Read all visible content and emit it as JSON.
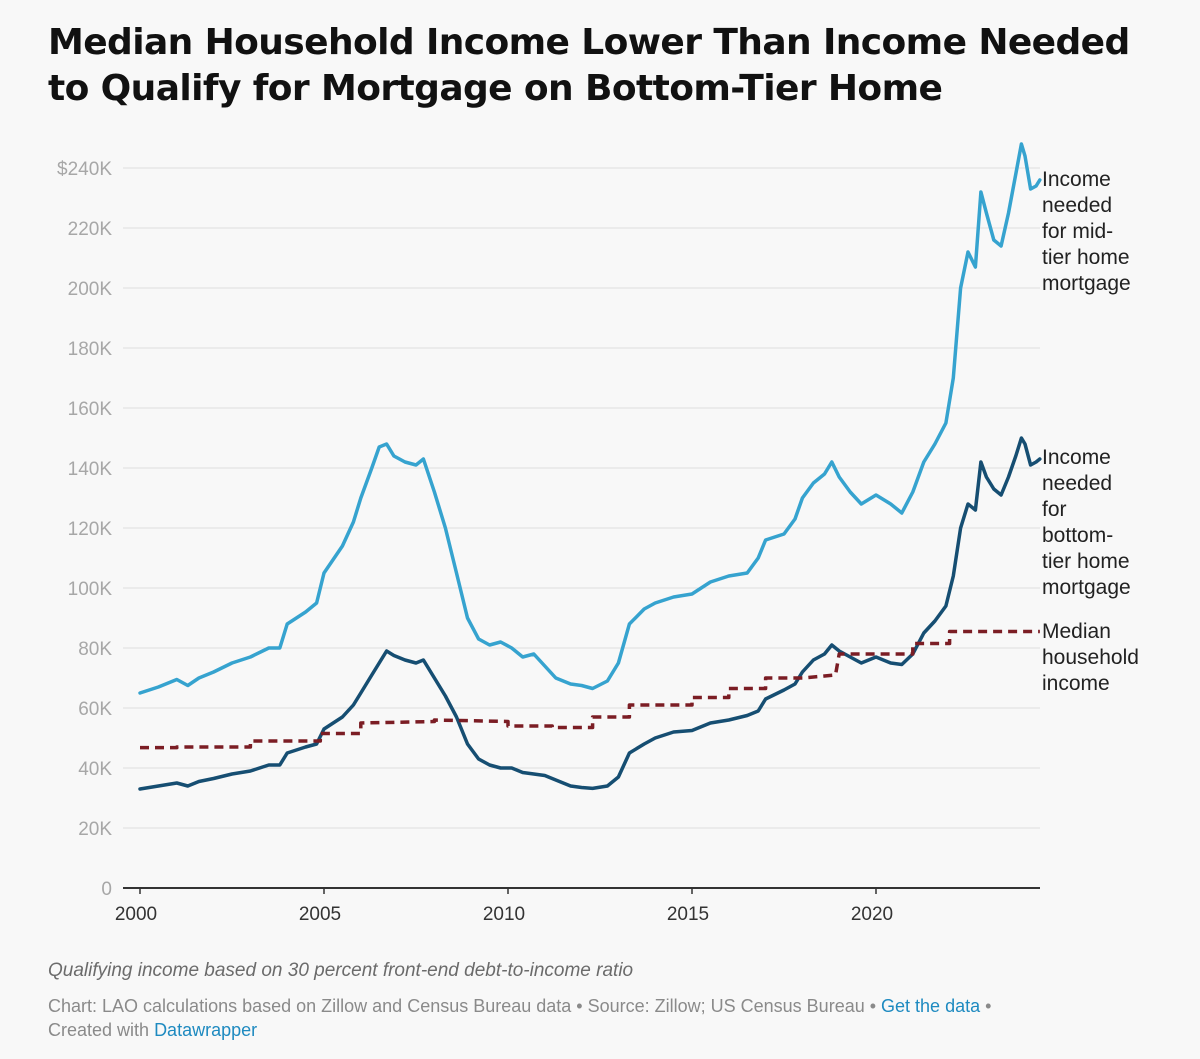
{
  "chart_data": {
    "type": "line",
    "title": "Median Household Income Lower Than Income Needed to Qualify for Mortgage on Bottom-Tier Home",
    "xlabel": "",
    "ylabel": "",
    "xlim": [
      2000,
      2024.5
    ],
    "ylim": [
      0,
      250000
    ],
    "x_ticks": [
      {
        "value": 2000,
        "label": "2000"
      },
      {
        "value": 2005,
        "label": "2005"
      },
      {
        "value": 2010,
        "label": "2010"
      },
      {
        "value": 2015,
        "label": "2015"
      },
      {
        "value": 2020,
        "label": "2020"
      }
    ],
    "y_ticks": [
      {
        "value": 0,
        "label": "0"
      },
      {
        "value": 20000,
        "label": "20K"
      },
      {
        "value": 40000,
        "label": "40K"
      },
      {
        "value": 60000,
        "label": "60K"
      },
      {
        "value": 80000,
        "label": "80K"
      },
      {
        "value": 100000,
        "label": "100K"
      },
      {
        "value": 120000,
        "label": "120K"
      },
      {
        "value": 140000,
        "label": "140K"
      },
      {
        "value": 160000,
        "label": "160K"
      },
      {
        "value": 180000,
        "label": "180K"
      },
      {
        "value": 200000,
        "label": "200K"
      },
      {
        "value": 220000,
        "label": "220K"
      },
      {
        "value": 240000,
        "label": "$240K"
      }
    ],
    "grid": true,
    "series": [
      {
        "name": "Income needed for mid-tier home mortgage",
        "label_lines": [
          "Income",
          "needed",
          "for mid-",
          "tier home",
          "mortgage"
        ],
        "color": "#36a3cf",
        "style": "solid",
        "points": [
          [
            2000,
            65000
          ],
          [
            2000.5,
            67000
          ],
          [
            2001,
            69500
          ],
          [
            2001.3,
            67500
          ],
          [
            2001.6,
            70000
          ],
          [
            2002,
            72000
          ],
          [
            2002.5,
            75000
          ],
          [
            2003,
            77000
          ],
          [
            2003.5,
            80000
          ],
          [
            2003.8,
            80000
          ],
          [
            2004,
            88000
          ],
          [
            2004.5,
            92000
          ],
          [
            2004.8,
            95000
          ],
          [
            2005,
            105000
          ],
          [
            2005.5,
            114000
          ],
          [
            2005.8,
            122000
          ],
          [
            2006,
            130000
          ],
          [
            2006.3,
            140000
          ],
          [
            2006.5,
            147000
          ],
          [
            2006.7,
            148000
          ],
          [
            2006.9,
            144000
          ],
          [
            2007.2,
            142000
          ],
          [
            2007.5,
            141000
          ],
          [
            2007.7,
            143000
          ],
          [
            2008,
            132000
          ],
          [
            2008.3,
            120000
          ],
          [
            2008.6,
            105000
          ],
          [
            2008.9,
            90000
          ],
          [
            2009.2,
            83000
          ],
          [
            2009.5,
            81000
          ],
          [
            2009.8,
            82000
          ],
          [
            2010.1,
            80000
          ],
          [
            2010.4,
            77000
          ],
          [
            2010.7,
            78000
          ],
          [
            2011,
            74000
          ],
          [
            2011.3,
            70000
          ],
          [
            2011.7,
            68000
          ],
          [
            2012,
            67500
          ],
          [
            2012.3,
            66500
          ],
          [
            2012.7,
            69000
          ],
          [
            2013,
            75000
          ],
          [
            2013.3,
            88000
          ],
          [
            2013.7,
            93000
          ],
          [
            2014,
            95000
          ],
          [
            2014.5,
            97000
          ],
          [
            2015,
            98000
          ],
          [
            2015.5,
            102000
          ],
          [
            2016,
            104000
          ],
          [
            2016.5,
            105000
          ],
          [
            2016.8,
            110000
          ],
          [
            2017,
            116000
          ],
          [
            2017.5,
            118000
          ],
          [
            2017.8,
            123000
          ],
          [
            2018,
            130000
          ],
          [
            2018.3,
            135000
          ],
          [
            2018.6,
            138000
          ],
          [
            2018.8,
            142000
          ],
          [
            2019,
            137000
          ],
          [
            2019.3,
            132000
          ],
          [
            2019.6,
            128000
          ],
          [
            2020,
            131000
          ],
          [
            2020.4,
            128000
          ],
          [
            2020.7,
            125000
          ],
          [
            2021,
            132000
          ],
          [
            2021.3,
            142000
          ],
          [
            2021.6,
            148000
          ],
          [
            2021.9,
            155000
          ],
          [
            2022.1,
            170000
          ],
          [
            2022.3,
            200000
          ],
          [
            2022.5,
            212000
          ],
          [
            2022.7,
            207000
          ],
          [
            2022.85,
            232000
          ],
          [
            2023,
            225000
          ],
          [
            2023.2,
            216000
          ],
          [
            2023.4,
            214000
          ],
          [
            2023.6,
            225000
          ],
          [
            2023.8,
            238000
          ],
          [
            2023.95,
            248000
          ],
          [
            2024.05,
            244000
          ],
          [
            2024.2,
            233000
          ],
          [
            2024.35,
            234000
          ],
          [
            2024.45,
            236000
          ]
        ]
      },
      {
        "name": "Income needed for bottom-tier home mortgage",
        "label_lines": [
          "Income",
          "needed",
          "for",
          "bottom-",
          "tier home",
          "mortgage"
        ],
        "color": "#164e72",
        "style": "solid",
        "points": [
          [
            2000,
            33000
          ],
          [
            2000.5,
            34000
          ],
          [
            2001,
            35000
          ],
          [
            2001.3,
            34000
          ],
          [
            2001.6,
            35500
          ],
          [
            2002,
            36500
          ],
          [
            2002.5,
            38000
          ],
          [
            2003,
            39000
          ],
          [
            2003.5,
            41000
          ],
          [
            2003.8,
            41000
          ],
          [
            2004,
            45000
          ],
          [
            2004.5,
            47000
          ],
          [
            2004.8,
            48000
          ],
          [
            2005,
            53000
          ],
          [
            2005.5,
            57000
          ],
          [
            2005.8,
            61000
          ],
          [
            2006,
            65000
          ],
          [
            2006.3,
            71000
          ],
          [
            2006.5,
            75000
          ],
          [
            2006.7,
            79000
          ],
          [
            2006.9,
            77500
          ],
          [
            2007.2,
            76000
          ],
          [
            2007.5,
            75000
          ],
          [
            2007.7,
            76000
          ],
          [
            2008,
            70000
          ],
          [
            2008.3,
            64000
          ],
          [
            2008.6,
            57000
          ],
          [
            2008.9,
            48000
          ],
          [
            2009.2,
            43000
          ],
          [
            2009.5,
            41000
          ],
          [
            2009.8,
            40000
          ],
          [
            2010.1,
            40000
          ],
          [
            2010.4,
            38500
          ],
          [
            2010.7,
            38000
          ],
          [
            2011,
            37500
          ],
          [
            2011.3,
            36000
          ],
          [
            2011.7,
            34000
          ],
          [
            2012,
            33500
          ],
          [
            2012.3,
            33200
          ],
          [
            2012.7,
            34000
          ],
          [
            2013,
            37000
          ],
          [
            2013.3,
            45000
          ],
          [
            2013.7,
            48000
          ],
          [
            2014,
            50000
          ],
          [
            2014.5,
            52000
          ],
          [
            2015,
            52500
          ],
          [
            2015.5,
            55000
          ],
          [
            2016,
            56000
          ],
          [
            2016.5,
            57500
          ],
          [
            2016.8,
            59000
          ],
          [
            2017,
            63000
          ],
          [
            2017.5,
            66000
          ],
          [
            2017.8,
            68000
          ],
          [
            2018,
            72000
          ],
          [
            2018.3,
            76000
          ],
          [
            2018.6,
            78000
          ],
          [
            2018.8,
            81000
          ],
          [
            2019,
            79000
          ],
          [
            2019.3,
            77000
          ],
          [
            2019.6,
            75000
          ],
          [
            2020,
            77000
          ],
          [
            2020.4,
            75000
          ],
          [
            2020.7,
            74500
          ],
          [
            2021,
            78000
          ],
          [
            2021.3,
            85000
          ],
          [
            2021.6,
            89000
          ],
          [
            2021.9,
            94000
          ],
          [
            2022.1,
            104000
          ],
          [
            2022.3,
            120000
          ],
          [
            2022.5,
            128000
          ],
          [
            2022.7,
            126000
          ],
          [
            2022.85,
            142000
          ],
          [
            2023,
            137000
          ],
          [
            2023.2,
            133000
          ],
          [
            2023.4,
            131000
          ],
          [
            2023.6,
            137000
          ],
          [
            2023.8,
            144000
          ],
          [
            2023.95,
            150000
          ],
          [
            2024.05,
            148000
          ],
          [
            2024.2,
            141000
          ],
          [
            2024.35,
            142000
          ],
          [
            2024.45,
            143000
          ]
        ]
      },
      {
        "name": "Median household income",
        "label_lines": [
          "Median",
          "household",
          "income"
        ],
        "color": "#7b1d24",
        "style": "dashed",
        "points": [
          [
            2000,
            46800
          ],
          [
            2001,
            46800
          ],
          [
            2001,
            47000
          ],
          [
            2003,
            47000
          ],
          [
            2003,
            49000
          ],
          [
            2004.9,
            49000
          ],
          [
            2004.9,
            51500
          ],
          [
            2006,
            51500
          ],
          [
            2006,
            55000
          ],
          [
            2008,
            55500
          ],
          [
            2008,
            56000
          ],
          [
            2010,
            55500
          ],
          [
            2010,
            54000
          ],
          [
            2011.2,
            54000
          ],
          [
            2011.2,
            53500
          ],
          [
            2012.3,
            53500
          ],
          [
            2012.3,
            57000
          ],
          [
            2013.3,
            57000
          ],
          [
            2013.3,
            61000
          ],
          [
            2015,
            61000
          ],
          [
            2015,
            63500
          ],
          [
            2016,
            63500
          ],
          [
            2016,
            66500
          ],
          [
            2017,
            66500
          ],
          [
            2017,
            70000
          ],
          [
            2018,
            70000
          ],
          [
            2018.9,
            71000
          ],
          [
            2019,
            78000
          ],
          [
            2021,
            78000
          ],
          [
            2021,
            81500
          ],
          [
            2022,
            81500
          ],
          [
            2022,
            85500
          ],
          [
            2024.45,
            85500
          ]
        ],
        "extension": {
          "style": "dotted",
          "to": [
            2024.5,
            85500
          ]
        }
      }
    ]
  },
  "footer": {
    "note": "Qualifying income based on 30 percent front-end debt-to-income ratio",
    "credit_prefix": "Chart: LAO calculations based on Zillow and Census Bureau data • Source: Zillow; US Census Bureau • ",
    "get_data_label": "Get the data",
    "bullet": " •",
    "created_prefix": "Created with ",
    "datawrapper_label": "Datawrapper"
  }
}
